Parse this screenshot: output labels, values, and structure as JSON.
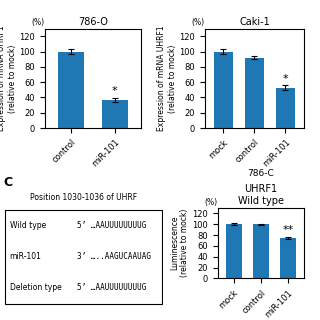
{
  "chart_data": [
    {
      "type": "bar",
      "title": "786-O",
      "ylabel": "Expression of mRNA UHRF1\n(relative to mock)",
      "categories": [
        "control",
        "miR-101"
      ],
      "values": [
        100,
        37
      ],
      "errors": [
        3,
        2.5
      ],
      "ylim": [
        0,
        130
      ],
      "yticks": [
        0,
        20,
        40,
        60,
        80,
        100,
        120
      ],
      "annotations": [
        {
          "text": "(%)"
        },
        {
          "text": "*",
          "category": "miR-101"
        }
      ]
    },
    {
      "type": "bar",
      "title": "Caki-1",
      "ylabel": "Expression of mRNA UHRF1\n(relative to mock)",
      "categories": [
        "mock",
        "control",
        "miR-101"
      ],
      "values": [
        100,
        92,
        53
      ],
      "errors": [
        3,
        2,
        3
      ],
      "ylim": [
        0,
        130
      ],
      "yticks": [
        0,
        20,
        40,
        60,
        80,
        100,
        120
      ],
      "annotations": [
        {
          "text": "(%)"
        },
        {
          "text": "*",
          "category": "miR-101"
        }
      ]
    },
    {
      "type": "table",
      "title": "Position 1030-1036 of UHRF",
      "rows": [
        [
          "Wild type",
          "5’ …AAUUUUUUUUG"
        ],
        [
          "miR-101",
          "3’ …..AAGUCAAUAG"
        ],
        [
          "Deletion type",
          "5’ …AAUUUUUUUUG"
        ]
      ],
      "annotations": [
        {
          "text": "C"
        }
      ]
    },
    {
      "type": "bar",
      "title": "UHRF1\nWild type",
      "subtitle": "786-C",
      "ylabel": "Luminescence\n(relative to mock)",
      "categories": [
        "mock",
        "control",
        "miR-101"
      ],
      "values": [
        100,
        100,
        75
      ],
      "errors": [
        1.5,
        1.2,
        2.0
      ],
      "ylim": [
        0,
        130
      ],
      "yticks": [
        0,
        20,
        40,
        60,
        80,
        100,
        120
      ],
      "annotations": [
        {
          "text": "(%)"
        },
        {
          "text": "**",
          "category": "miR-101"
        }
      ]
    }
  ]
}
